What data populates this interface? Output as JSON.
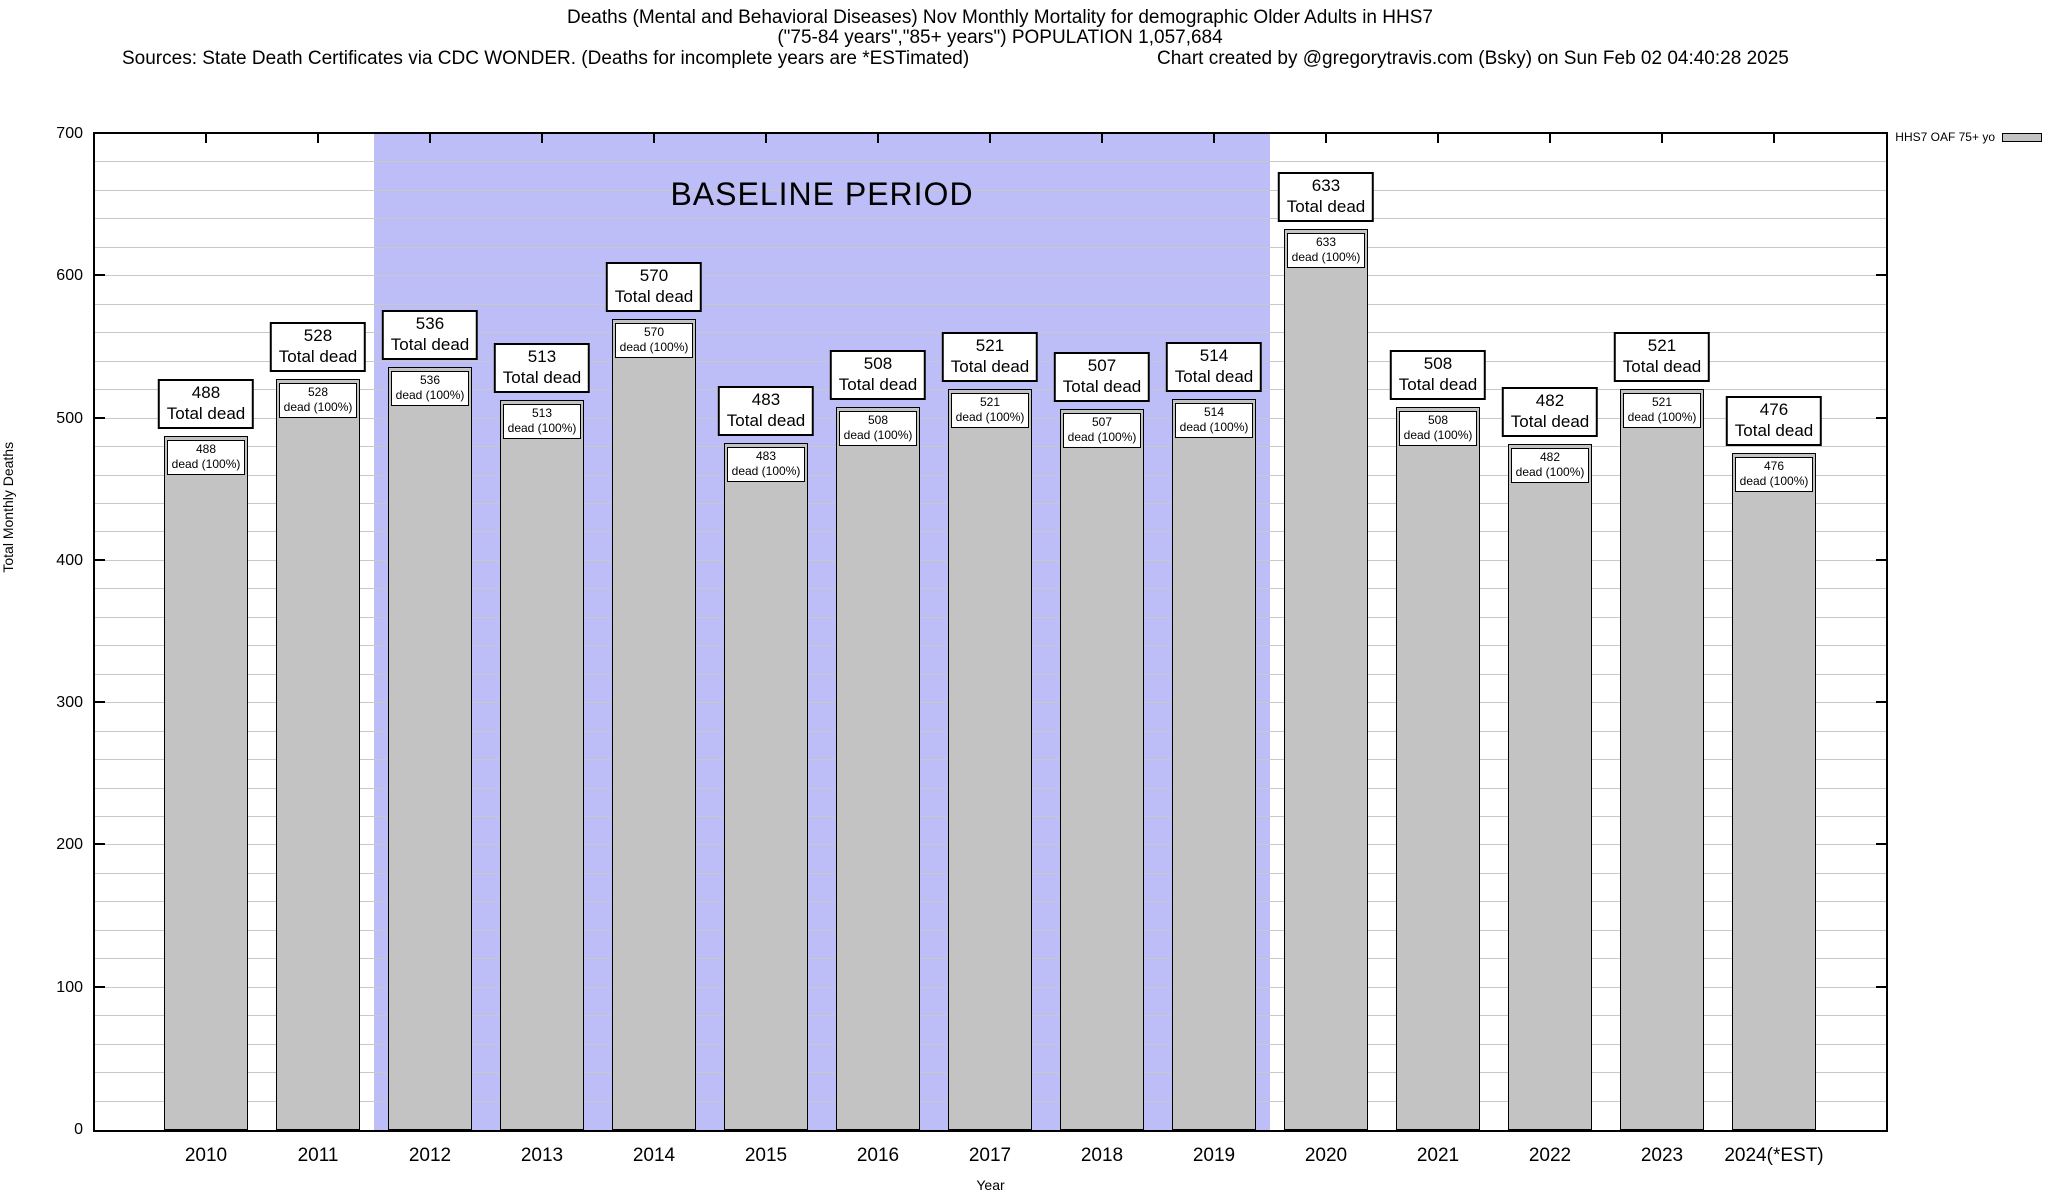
{
  "header": {
    "title": "Deaths (Mental and Behavioral Diseases) Nov Monthly Mortality for demographic Older Adults in HHS7",
    "subtitle": "(\"75-84 years\",\"85+ years\") POPULATION 1,057,684",
    "sources": "Sources: State Death Certificates via CDC WONDER. (Deaths for incomplete years are *ESTimated)",
    "credit": "Chart created by @gregorytravis.com (Bsky) on Sun Feb 02 04:40:28 2025"
  },
  "legend": {
    "label": "HHS7 OAF 75+ yo"
  },
  "axes": {
    "ylabel": "Total Monthly Deaths",
    "xlabel": "Year",
    "yticks": [
      "0",
      "100",
      "200",
      "300",
      "400",
      "500",
      "600",
      "700"
    ]
  },
  "labels": {
    "outer_suffix": "Total dead",
    "inner_suffix": "dead (100%)"
  },
  "colors": {
    "bar_fill": "#c3c3c3",
    "baseline_fill": "#bdbdf8",
    "gridline": "#c8c8c8"
  },
  "chart_data": {
    "type": "bar",
    "title": "Deaths (Mental and Behavioral Diseases) Nov Monthly Mortality for demographic Older Adults in HHS7",
    "subtitle": "(\"75-84 years\",\"85+ years\") POPULATION 1,057,684",
    "xlabel": "Year",
    "ylabel": "Total Monthly Deaths",
    "ylim": [
      0,
      700
    ],
    "y_major_step": 100,
    "y_minor_step": 20,
    "grid": true,
    "legend_position": "top-right-outside",
    "series_name": "HHS7 OAF 75+ yo",
    "categories": [
      "2010",
      "2011",
      "2012",
      "2013",
      "2014",
      "2015",
      "2016",
      "2017",
      "2018",
      "2019",
      "2020",
      "2021",
      "2022",
      "2023",
      "2024(*EST)"
    ],
    "values": [
      488,
      528,
      536,
      513,
      570,
      483,
      508,
      521,
      507,
      514,
      633,
      508,
      482,
      521,
      476
    ],
    "bar_label_above_format": "{value} Total dead",
    "bar_label_inside_format": "{value} dead (100%)",
    "baseline_period": {
      "label": "BASELINE PERIOD",
      "from_category": "2012",
      "to_category": "2019"
    }
  }
}
